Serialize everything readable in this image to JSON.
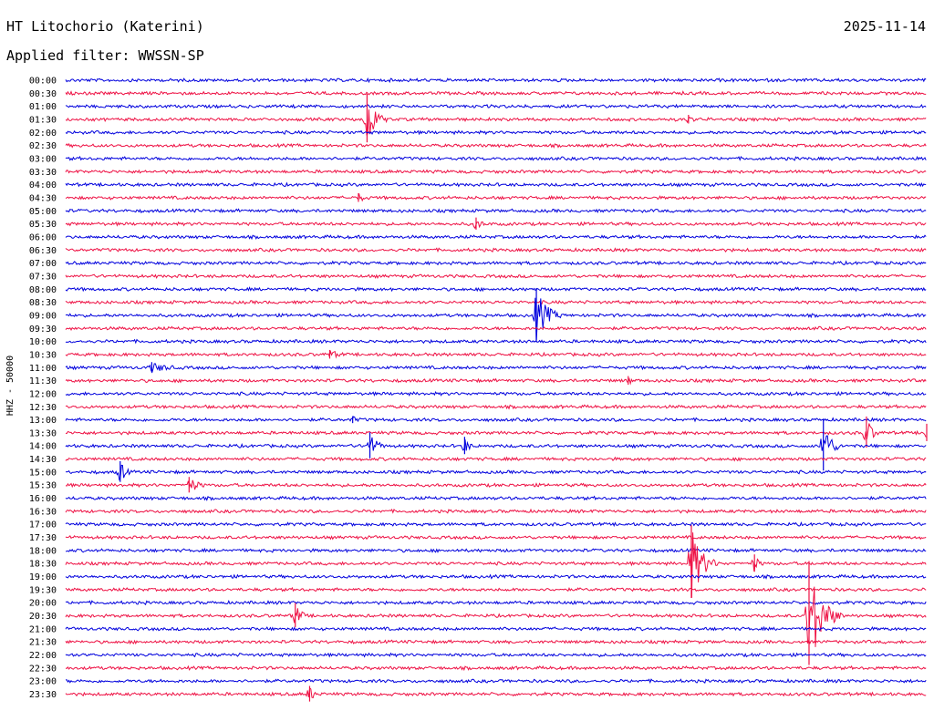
{
  "header": {
    "station": "HT Litochorio (Katerini)",
    "date": "2025-11-14",
    "filter": "Applied filter: WWSSN-SP"
  },
  "chart_data": {
    "type": "line",
    "title": "HT Litochorio (Katerini)",
    "ylabel": "HHZ - 50000",
    "xlabel": "",
    "colors": {
      "even_row": "#0000dd",
      "odd_row": "#ee1144"
    },
    "rows": [
      "00:00",
      "00:30",
      "01:00",
      "01:30",
      "02:00",
      "02:30",
      "03:00",
      "03:30",
      "04:00",
      "04:30",
      "05:00",
      "05:30",
      "06:00",
      "06:30",
      "07:00",
      "07:30",
      "08:00",
      "08:30",
      "09:00",
      "09:30",
      "10:00",
      "10:30",
      "11:00",
      "11:30",
      "12:00",
      "12:30",
      "13:00",
      "13:30",
      "14:00",
      "14:30",
      "15:00",
      "15:30",
      "16:00",
      "16:30",
      "17:00",
      "17:30",
      "18:00",
      "18:30",
      "19:00",
      "19:30",
      "20:00",
      "20:30",
      "21:00",
      "21:30",
      "22:00",
      "22:30",
      "23:00",
      "23:30"
    ],
    "events": [
      {
        "row": "01:30",
        "minute": 10.5,
        "amplitude": 28,
        "duration_min": 0.8
      },
      {
        "row": "01:30",
        "minute": 21.7,
        "amplitude": 5,
        "duration_min": 0.6
      },
      {
        "row": "04:30",
        "minute": 10.2,
        "amplitude": 5,
        "duration_min": 1.0
      },
      {
        "row": "05:30",
        "minute": 14.3,
        "amplitude": 7,
        "duration_min": 0.7
      },
      {
        "row": "09:00",
        "minute": 16.4,
        "amplitude": 30,
        "duration_min": 1.0
      },
      {
        "row": "10:30",
        "minute": 9.2,
        "amplitude": 5,
        "duration_min": 1.5
      },
      {
        "row": "11:00",
        "minute": 3.0,
        "amplitude": 6,
        "duration_min": 2.0
      },
      {
        "row": "11:30",
        "minute": 19.6,
        "amplitude": 5,
        "duration_min": 0.5
      },
      {
        "row": "13:00",
        "minute": 10.0,
        "amplitude": 4,
        "duration_min": 1.0
      },
      {
        "row": "13:30",
        "minute": 27.9,
        "amplitude": 18,
        "duration_min": 0.6
      },
      {
        "row": "13:30",
        "minute": 30.0,
        "amplitude": 10,
        "duration_min": 0.4
      },
      {
        "row": "14:00",
        "minute": 10.6,
        "amplitude": 15,
        "duration_min": 0.7
      },
      {
        "row": "14:00",
        "minute": 13.9,
        "amplitude": 10,
        "duration_min": 0.5
      },
      {
        "row": "14:00",
        "minute": 26.4,
        "amplitude": 30,
        "duration_min": 0.7
      },
      {
        "row": "15:00",
        "minute": 1.9,
        "amplitude": 12,
        "duration_min": 0.6
      },
      {
        "row": "15:30",
        "minute": 4.3,
        "amplitude": 9,
        "duration_min": 1.0
      },
      {
        "row": "18:30",
        "minute": 21.8,
        "amplitude": 42,
        "duration_min": 1.0
      },
      {
        "row": "18:30",
        "minute": 24.0,
        "amplitude": 10,
        "duration_min": 0.5
      },
      {
        "row": "20:30",
        "minute": 8.0,
        "amplitude": 14,
        "duration_min": 0.6
      },
      {
        "row": "20:30",
        "minute": 25.9,
        "amplitude": 60,
        "duration_min": 1.2
      },
      {
        "row": "23:30",
        "minute": 8.5,
        "amplitude": 9,
        "duration_min": 0.5
      }
    ]
  }
}
